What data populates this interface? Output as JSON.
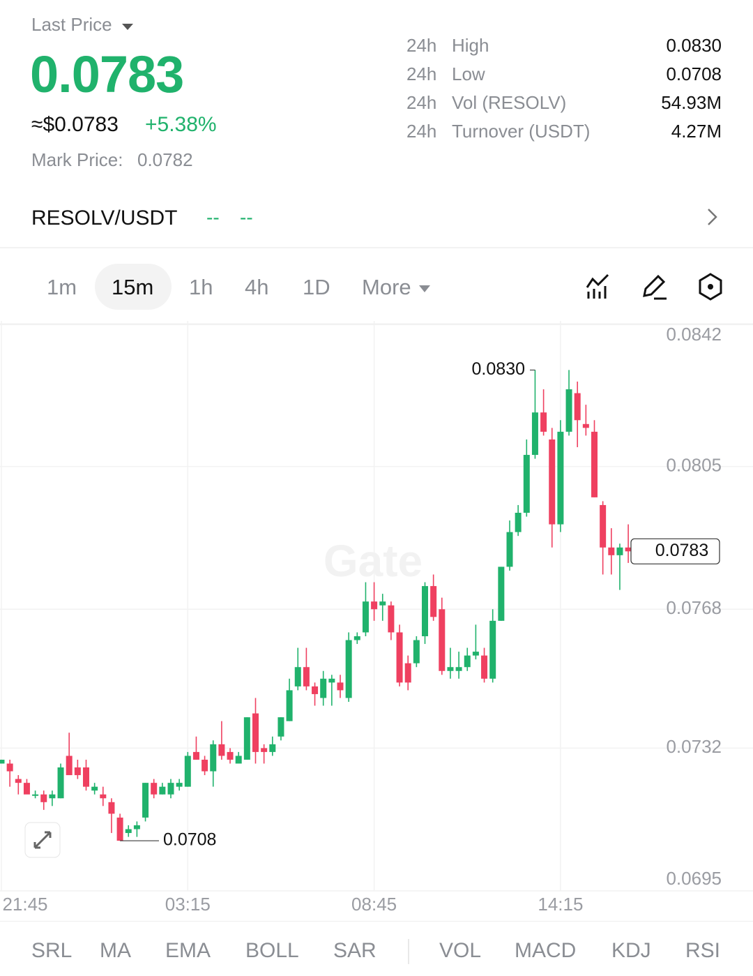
{
  "header": {
    "label": "Last Price",
    "price": "0.0783",
    "usd": "≈$0.0783",
    "change": "+5.38%",
    "mark_label": "Mark Price:",
    "mark_value": "0.0782"
  },
  "stats": [
    {
      "period": "24h",
      "label": "High",
      "value": "0.0830"
    },
    {
      "period": "24h",
      "label": "Low",
      "value": "0.0708"
    },
    {
      "period": "24h",
      "label": "Vol (RESOLV)",
      "value": "54.93M"
    },
    {
      "period": "24h",
      "label": "Turnover (USDT)",
      "value": "4.27M"
    }
  ],
  "pair": {
    "name": "RESOLV/USDT",
    "price": "--",
    "change": "--"
  },
  "intervals": [
    "1m",
    "15m",
    "1h",
    "4h",
    "1D",
    "More"
  ],
  "indicators": [
    "SRL",
    "MA",
    "EMA",
    "BOLL",
    "SAR",
    "VOL",
    "MACD",
    "KDJ",
    "RSI"
  ],
  "chart_data": {
    "type": "candlestick",
    "watermark": "Gate",
    "up_color": "#20b26c",
    "down_color": "#ef4060",
    "categories": [
      "21:45",
      null,
      null,
      null,
      null,
      null,
      null,
      null,
      null,
      null,
      null,
      null,
      null,
      null,
      null,
      null,
      null,
      null,
      null,
      null,
      null,
      null,
      "03:15",
      null,
      null,
      null,
      null,
      null,
      null,
      null,
      null,
      null,
      null,
      null,
      null,
      null,
      null,
      null,
      null,
      null,
      null,
      null,
      null,
      null,
      "08:45",
      null,
      null,
      null,
      null,
      null,
      null,
      null,
      null,
      null,
      null,
      null,
      null,
      null,
      null,
      null,
      null,
      null,
      null,
      null,
      null,
      null,
      "14:15",
      null,
      null,
      null,
      null,
      null,
      null,
      null,
      null
    ],
    "open": [
      0.0728,
      0.0728,
      0.0724,
      0.0723,
      0.072,
      0.072,
      0.0719,
      0.0719,
      0.073,
      0.0727,
      0.0727,
      0.0721,
      0.072,
      0.0718,
      0.0714,
      0.071,
      0.0711,
      0.0714,
      0.0723,
      0.072,
      0.072,
      0.0722,
      0.0722,
      0.0731,
      0.0729,
      0.0726,
      0.0733,
      0.0731,
      0.0728,
      0.0729,
      0.0741,
      0.0732,
      0.0731,
      0.0735,
      0.0739,
      0.0748,
      0.0753,
      0.0748,
      0.0745,
      0.0749,
      0.0749,
      0.0745,
      0.076,
      0.0762,
      0.077,
      0.0769,
      0.0769,
      0.0762,
      0.0754,
      0.0754,
      0.0761,
      0.0774,
      0.0768,
      0.0752,
      0.0752,
      0.0753,
      0.0756,
      0.0756,
      0.075,
      0.0765,
      0.0779,
      0.0788,
      0.0793,
      0.0808,
      0.0819,
      0.0812,
      0.079,
      0.0814,
      0.0824,
      0.0816,
      0.0814,
      0.0795,
      0.0784,
      0.0782,
      0.0784
    ],
    "high": [
      0.0729,
      0.0729,
      0.0725,
      0.0724,
      0.0721,
      0.0721,
      0.0721,
      0.0728,
      0.0736,
      0.0729,
      0.0729,
      0.0723,
      0.0722,
      0.0719,
      0.0715,
      0.0712,
      0.0713,
      0.0723,
      0.0724,
      0.0723,
      0.0724,
      0.0724,
      0.0731,
      0.0735,
      0.073,
      0.0734,
      0.0739,
      0.0732,
      0.0731,
      0.074,
      0.0745,
      0.0733,
      0.0735,
      0.074,
      0.075,
      0.0758,
      0.0758,
      0.0749,
      0.0752,
      0.0751,
      0.0751,
      0.0762,
      0.0762,
      0.0775,
      0.0775,
      0.0772,
      0.077,
      0.0764,
      0.0756,
      0.0761,
      0.0775,
      0.0777,
      0.0771,
      0.0758,
      0.0757,
      0.0758,
      0.0764,
      0.0758,
      0.0768,
      0.0779,
      0.0791,
      0.0795,
      0.0812,
      0.083,
      0.0825,
      0.0815,
      0.0817,
      0.083,
      0.0827,
      0.0821,
      0.0817,
      0.0796,
      0.0789,
      0.0785,
      0.079
    ],
    "low": [
      0.0728,
      0.0722,
      0.072,
      0.0721,
      0.0719,
      0.0716,
      0.0717,
      0.0719,
      0.0726,
      0.0724,
      0.0721,
      0.072,
      0.0717,
      0.071,
      0.0708,
      0.0709,
      0.0709,
      0.0713,
      0.0719,
      0.072,
      0.0719,
      0.0721,
      0.0722,
      0.0729,
      0.0725,
      0.0722,
      0.0729,
      0.0728,
      0.0728,
      0.0729,
      0.0728,
      0.0728,
      0.073,
      0.0734,
      0.0739,
      0.0747,
      0.0747,
      0.0743,
      0.0743,
      0.0743,
      0.0745,
      0.0744,
      0.0759,
      0.0761,
      0.0765,
      0.0765,
      0.076,
      0.0748,
      0.0747,
      0.0753,
      0.0759,
      0.0765,
      0.0751,
      0.075,
      0.075,
      0.0752,
      0.0755,
      0.0749,
      0.0749,
      0.0765,
      0.0778,
      0.0787,
      0.0792,
      0.0807,
      0.0813,
      0.0784,
      0.0788,
      0.0813,
      0.081,
      0.0813,
      0.0797,
      0.0777,
      0.0777,
      0.0773,
      0.078
    ],
    "close": [
      0.0729,
      0.0726,
      0.0723,
      0.072,
      0.072,
      0.0718,
      0.072,
      0.0727,
      0.0725,
      0.0725,
      0.0722,
      0.0722,
      0.0719,
      0.0715,
      0.0708,
      0.0711,
      0.0712,
      0.0723,
      0.072,
      0.0722,
      0.0723,
      0.0723,
      0.073,
      0.0729,
      0.0726,
      0.0733,
      0.073,
      0.0729,
      0.073,
      0.074,
      0.0731,
      0.0731,
      0.0733,
      0.074,
      0.0747,
      0.0753,
      0.0748,
      0.0746,
      0.075,
      0.075,
      0.0747,
      0.076,
      0.0761,
      0.077,
      0.0768,
      0.077,
      0.0762,
      0.0749,
      0.0749,
      0.076,
      0.0774,
      0.0766,
      0.0752,
      0.0753,
      0.0753,
      0.0756,
      0.0757,
      0.075,
      0.0765,
      0.0779,
      0.0788,
      0.0793,
      0.0808,
      0.0819,
      0.0814,
      0.079,
      0.0814,
      0.0825,
      0.0817,
      0.0815,
      0.0797,
      0.0784,
      0.0782,
      0.0784,
      0.0783
    ],
    "ylim": [
      0.0695,
      0.0842
    ],
    "yticks": [
      0.0842,
      0.0805,
      0.0768,
      0.0732,
      0.0695
    ],
    "grid": true,
    "annotations": [
      {
        "value": 0.083,
        "label": "0.0830",
        "kind": "high"
      },
      {
        "value": 0.0708,
        "label": "0.0708",
        "kind": "low"
      },
      {
        "value": 0.0783,
        "label": "0.0783",
        "kind": "last"
      }
    ]
  }
}
